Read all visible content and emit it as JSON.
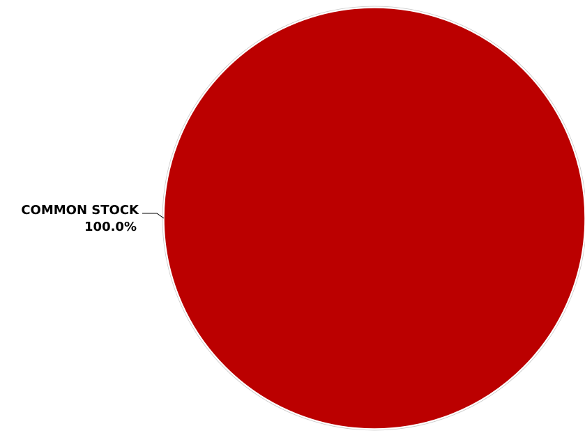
{
  "chart_data": {
    "type": "pie",
    "slices": [
      {
        "label": "COMMON STOCK",
        "value": 100.0,
        "percent_label": "100.0%",
        "color": "#BB0000"
      }
    ]
  }
}
